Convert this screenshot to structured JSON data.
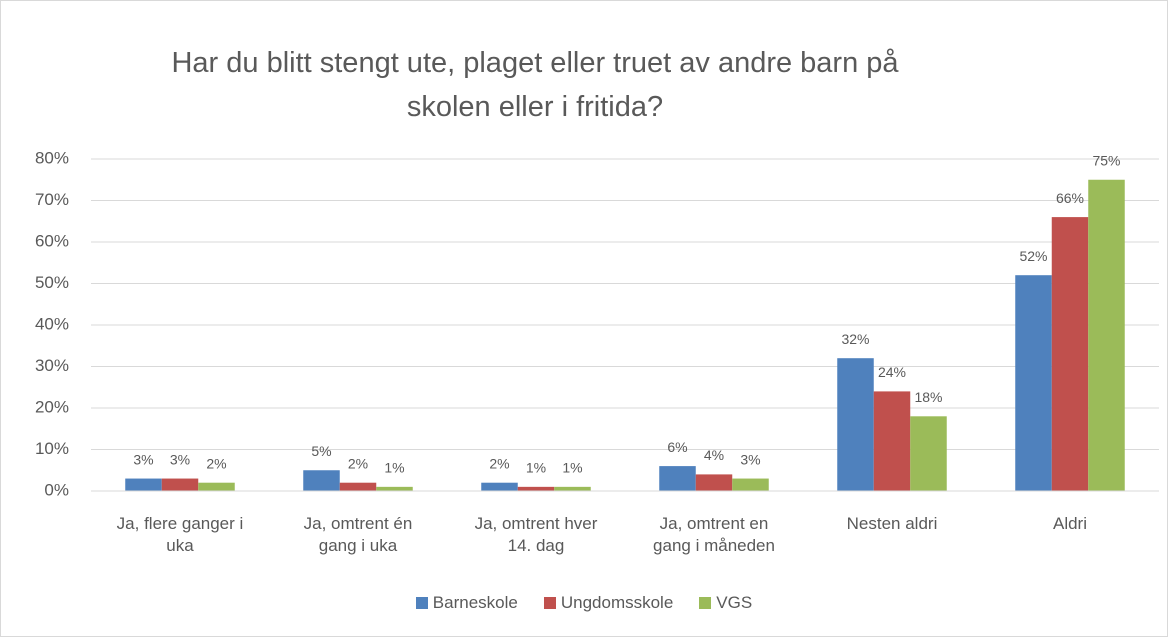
{
  "chart_data": {
    "type": "bar",
    "title": "Har du blitt stengt ute, plaget eller truet av andre barn på skolen eller i fritida?",
    "categories": [
      "Ja, flere ganger i uka",
      "Ja, omtrent én gang i uka",
      "Ja, omtrent hver 14. dag",
      "Ja, omtrent en gang i måneden",
      "Nesten aldri",
      "Aldri"
    ],
    "series": [
      {
        "name": "Barneskole",
        "color": "#4f81bd",
        "values": [
          3,
          5,
          2,
          6,
          32,
          52
        ],
        "value_labels": [
          "3%",
          "5%",
          "2%",
          "6%",
          "32%",
          "52%"
        ]
      },
      {
        "name": "Ungdomsskole",
        "color": "#c0504d",
        "values": [
          3,
          2,
          1,
          4,
          24,
          66
        ],
        "value_labels": [
          "3%",
          "2%",
          "1%",
          "4%",
          "24%",
          "66%"
        ]
      },
      {
        "name": "VGS",
        "color": "#9bbb59",
        "values": [
          2,
          1,
          1,
          3,
          18,
          75
        ],
        "value_labels": [
          "2%",
          "1%",
          "1%",
          "3%",
          "18%",
          "75%"
        ]
      }
    ],
    "ylim": [
      0,
      80
    ],
    "yticks": [
      {
        "value": 0,
        "label": "0%"
      },
      {
        "value": 10,
        "label": "10%"
      },
      {
        "value": 20,
        "label": "20%"
      },
      {
        "value": 30,
        "label": "30%"
      },
      {
        "value": 40,
        "label": "40%"
      },
      {
        "value": 50,
        "label": "50%"
      },
      {
        "value": 60,
        "label": "60%"
      },
      {
        "value": 70,
        "label": "70%"
      },
      {
        "value": 80,
        "label": "80%"
      }
    ],
    "grid": true,
    "legend": "bottom"
  }
}
